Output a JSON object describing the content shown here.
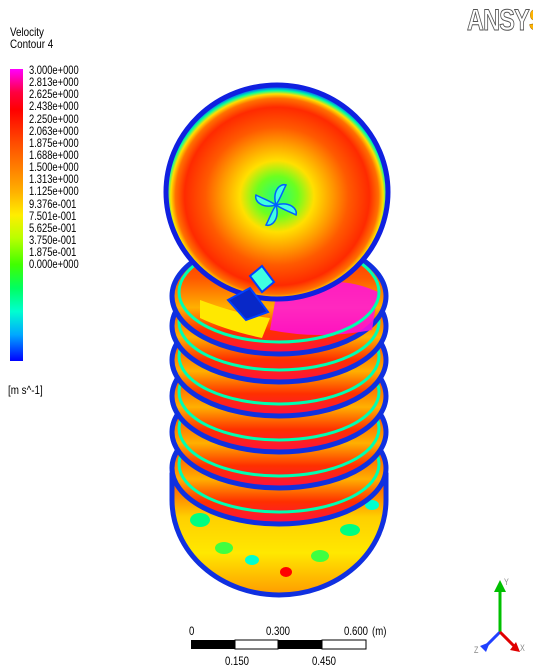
{
  "legend": {
    "title_line1": "Velocity",
    "title_line2": "Contour 4",
    "levels": [
      "3.000e+000",
      "2.813e+000",
      "2.625e+000",
      "2.438e+000",
      "2.250e+000",
      "2.063e+000",
      "1.875e+000",
      "1.688e+000",
      "1.500e+000",
      "1.313e+000",
      "1.125e+000",
      "9.376e-001",
      "7.501e-001",
      "5.625e-001",
      "3.750e-001",
      "1.875e-001",
      "0.000e+000"
    ],
    "units": "[m s^-1]"
  },
  "logo": {
    "part1": "ANSY",
    "part2": "S"
  },
  "scale_bar": {
    "top_labels": [
      "0",
      "0.300",
      "0.600",
      "(m)"
    ],
    "bottom_labels": [
      "0.150",
      "0.450"
    ]
  },
  "axes_triad": {
    "y_label": "Y",
    "z_label": "Z",
    "x_label": "X"
  },
  "colors": {
    "tank_rim": "#0040ff",
    "high_velocity": "#ff0000",
    "max_velocity": "#ff00ff",
    "mid_velocity": "#ffee00",
    "low_velocity": "#00ffd0"
  }
}
